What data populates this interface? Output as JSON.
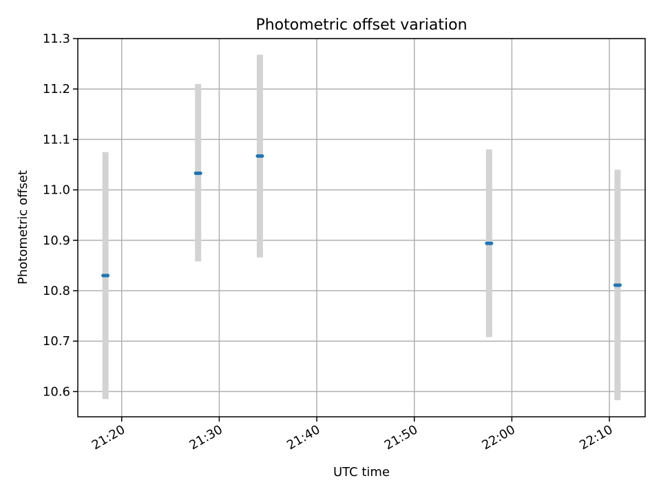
{
  "chart_data": {
    "type": "scatter",
    "title": "Photometric offset variation",
    "xlabel": "UTC time",
    "ylabel": "Photometric offset",
    "x_ticks": [
      "21:20",
      "21:30",
      "21:40",
      "21:50",
      "22:00",
      "22:10"
    ],
    "y_ticks": [
      "10.6",
      "10.7",
      "10.8",
      "10.9",
      "11.0",
      "11.1",
      "11.2",
      "11.3"
    ],
    "xlim": [
      "21:15:30",
      "22:13:40"
    ],
    "ylim": [
      10.55,
      11.3
    ],
    "grid": true,
    "legend": "none",
    "colors": {
      "point": "#1f77b4",
      "errorbar": "#d3d3d3",
      "grid": "#b0b0b0"
    },
    "points": [
      {
        "x": "21:18:20",
        "y": 10.83,
        "yerr_low": 10.585,
        "yerr_high": 11.075
      },
      {
        "x": "21:27:50",
        "y": 11.033,
        "yerr_low": 10.858,
        "yerr_high": 11.21
      },
      {
        "x": "21:34:10",
        "y": 11.067,
        "yerr_low": 10.866,
        "yerr_high": 11.268
      },
      {
        "x": "21:57:40",
        "y": 10.894,
        "yerr_low": 10.708,
        "yerr_high": 11.08
      },
      {
        "x": "22:10:50",
        "y": 10.811,
        "yerr_low": 10.583,
        "yerr_high": 11.04
      }
    ]
  }
}
